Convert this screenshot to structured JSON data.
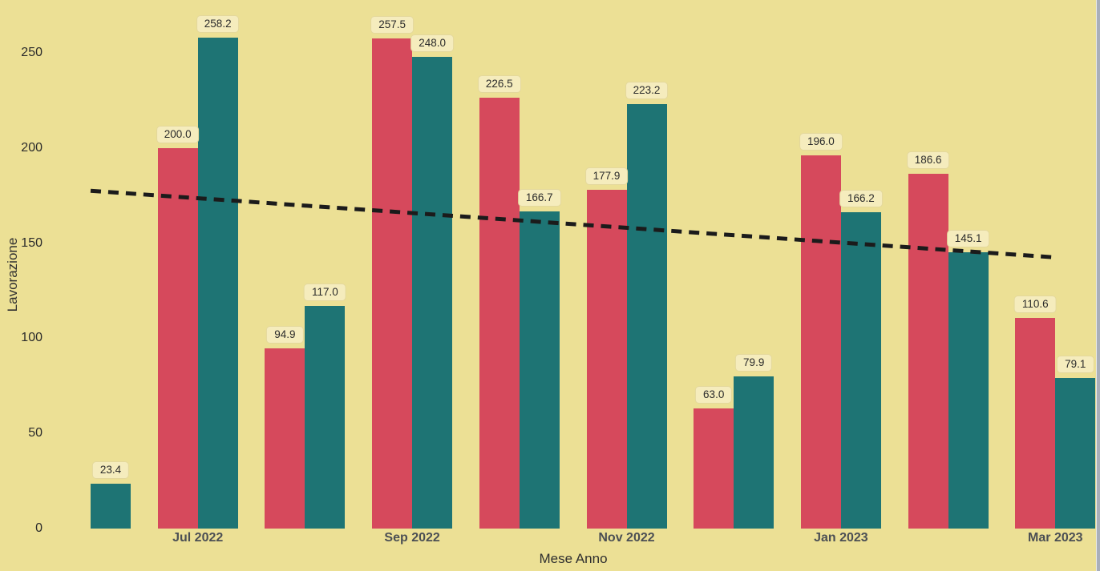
{
  "figure": {
    "background_color": "#ECE095",
    "right_edge_color": "#A9AFBA"
  },
  "chart_data": {
    "type": "bar",
    "title": "",
    "x_axis": {
      "title": "Mese Anno",
      "labels": [
        "",
        "Jul 2022",
        "",
        "Sep 2022",
        "",
        "Nov 2022",
        "",
        "Jan 2023",
        "",
        "Mar 2023"
      ]
    },
    "y_axis": {
      "title": "Lavorazione",
      "ticks": [
        0,
        50,
        100,
        150,
        200,
        250
      ],
      "range": [
        0,
        277
      ]
    },
    "series": [
      {
        "name": "red",
        "color": "#D6495C",
        "values": [
          null,
          200.0,
          94.9,
          257.5,
          226.5,
          177.9,
          63.0,
          196.0,
          186.6,
          110.6
        ]
      },
      {
        "name": "teal",
        "color": "#1E7474",
        "values": [
          23.4,
          258.2,
          117.0,
          248.0,
          166.7,
          223.2,
          79.9,
          166.2,
          145.1,
          79.1
        ]
      }
    ],
    "data_labels": {
      "visible": true,
      "decimals": 1,
      "background": "#F5ECBD",
      "border": "#E4D89C",
      "text_color": "#2B2B2B"
    },
    "trend_line": {
      "style": "dashed",
      "color": "#1B1B1B",
      "start_value": 177.5,
      "end_value": 142.5
    },
    "legend": "none",
    "grid": false
  },
  "text_colors": {
    "axis_tick": "#2B2B2B",
    "category_label": "#4B4F54",
    "axis_title": "#303030"
  }
}
